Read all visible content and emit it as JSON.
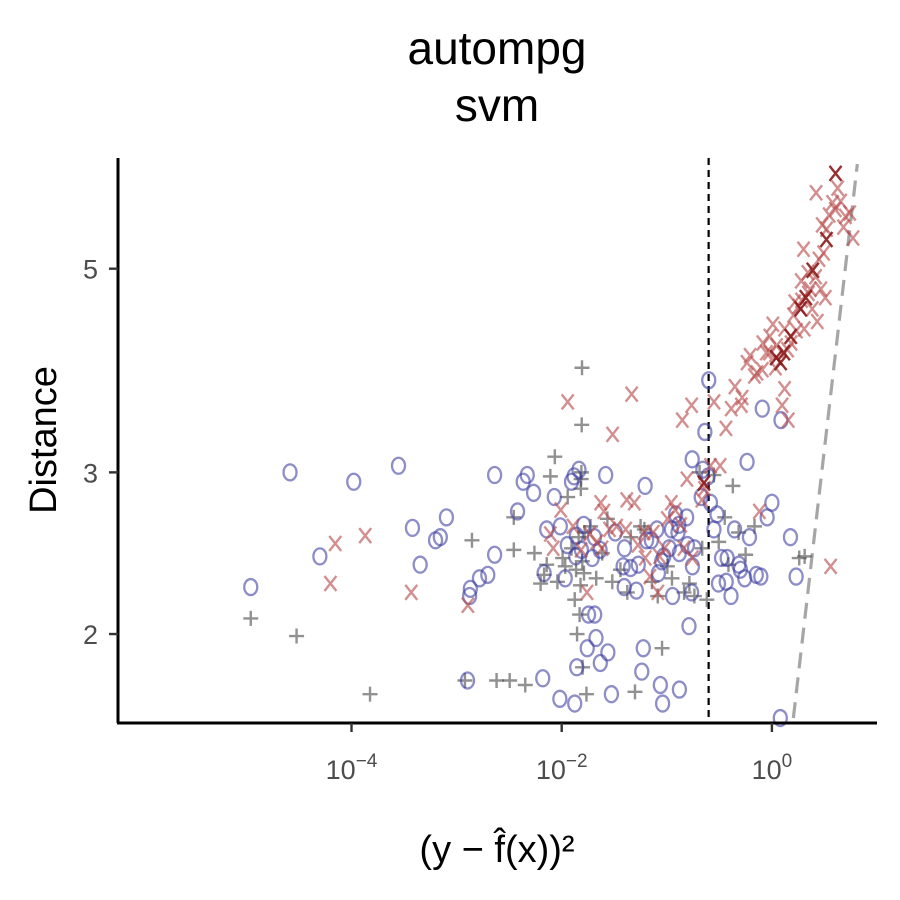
{
  "chart_data": {
    "type": "scatter",
    "title_lines": [
      "autompg",
      "svm"
    ],
    "xlabel": "(y − f̂(x))²",
    "ylabel": "Distance",
    "x_scale": "log10",
    "y_scale": "log",
    "xlim": [
      6e-07,
      10
    ],
    "ylim": [
      1.6,
      6.6
    ],
    "x_ticks": [
      {
        "value": 0.0001,
        "base": "10",
        "exp": "−4"
      },
      {
        "value": 0.01,
        "base": "10",
        "exp": "−2"
      },
      {
        "value": 1,
        "base": "10",
        "exp": "0"
      }
    ],
    "y_ticks": [
      {
        "value": 2,
        "label": "2"
      },
      {
        "value": 3,
        "label": "3"
      },
      {
        "value": 5,
        "label": "5"
      }
    ],
    "vline": {
      "x": 0.25,
      "style": "dashed",
      "color": "#000000"
    },
    "reference_line": {
      "points": [
        [
          1.6,
          1.62
        ],
        [
          6.5,
          6.5
        ]
      ],
      "style": "dashed",
      "color": "#a6a6a6"
    },
    "grid": false,
    "legend": "none",
    "colors": {
      "plus": "#4d4d4d",
      "o": "#3b3ba0",
      "x": "#b84a4a",
      "x_dark": "#8b1a1a"
    },
    "series": [
      {
        "marker": "+",
        "points": [
          [
            1.1e-05,
            2.08
          ],
          [
            3e-05,
            1.99
          ],
          [
            0.00015,
            1.72
          ],
          [
            0.0032,
            1.78
          ],
          [
            0.0045,
            1.76
          ],
          [
            0.0014,
            2.53
          ],
          [
            0.0035,
            2.47
          ],
          [
            0.0012,
            1.78
          ],
          [
            0.0024,
            1.78
          ],
          [
            0.0035,
            2.68
          ],
          [
            0.0055,
            2.45
          ],
          [
            0.0063,
            2.27
          ],
          [
            0.0068,
            2.32
          ],
          [
            0.0072,
            2.38
          ],
          [
            0.0078,
            2.97
          ],
          [
            0.0086,
            3.12
          ],
          [
            0.0091,
            2.28
          ],
          [
            0.0102,
            2.42
          ],
          [
            0.0108,
            2.37
          ],
          [
            0.0114,
            2.82
          ],
          [
            0.0124,
            2.48
          ],
          [
            0.0133,
            2.18
          ],
          [
            0.0137,
            2.35
          ],
          [
            0.014,
            2.0
          ],
          [
            0.0145,
            2.55
          ],
          [
            0.0148,
            2.1
          ],
          [
            0.0151,
            2.26
          ],
          [
            0.0152,
            2.88
          ],
          [
            0.0153,
            2.95
          ],
          [
            0.0154,
            3.0
          ],
          [
            0.0155,
            3.38
          ],
          [
            0.0156,
            3.9
          ],
          [
            0.0157,
            2.4
          ],
          [
            0.0158,
            1.84
          ],
          [
            0.0163,
            2.33
          ],
          [
            0.0165,
            2.58
          ],
          [
            0.0172,
            1.72
          ],
          [
            0.0188,
            2.62
          ],
          [
            0.0213,
            2.3
          ],
          [
            0.0243,
            2.45
          ],
          [
            0.0272,
            2.67
          ],
          [
            0.0303,
            2.28
          ],
          [
            0.0362,
            2.35
          ],
          [
            0.0421,
            2.22
          ],
          [
            0.0454,
            2.55
          ],
          [
            0.0563,
            2.62
          ],
          [
            0.0721,
            2.28
          ],
          [
            0.082,
            2.2
          ],
          [
            0.0901,
            1.93
          ],
          [
            0.1012,
            2.37
          ],
          [
            0.112,
            2.3
          ],
          [
            0.146,
            2.22
          ],
          [
            0.164,
            2.27
          ],
          [
            0.183,
            2.2
          ],
          [
            0.205,
            3.0
          ],
          [
            0.2172,
            2.48
          ],
          [
            0.2402,
            2.18
          ],
          [
            0.2802,
            2.98
          ],
          [
            0.312,
            2.52
          ],
          [
            0.356,
            2.68
          ],
          [
            0.386,
            2.38
          ],
          [
            0.425,
            2.9
          ],
          [
            0.482,
            2.58
          ],
          [
            0.562,
            2.44
          ],
          [
            0.683,
            2.62
          ],
          [
            0.0498,
            1.73
          ],
          [
            0.0612,
            2.6
          ],
          [
            1.82,
            2.42
          ],
          [
            2.05,
            2.43
          ]
        ]
      },
      {
        "marker": "o",
        "points": [
          [
            1.1e-05,
            2.25
          ],
          [
            2.6e-05,
            3.0
          ],
          [
            5e-05,
            2.43
          ],
          [
            0.000105,
            2.93
          ],
          [
            0.00028,
            3.05
          ],
          [
            0.00038,
            2.61
          ],
          [
            0.00045,
            2.38
          ],
          [
            0.0007,
            2.55
          ],
          [
            0.00063,
            2.53
          ],
          [
            0.0008,
            2.68
          ],
          [
            0.00127,
            1.78
          ],
          [
            0.00133,
            2.2
          ],
          [
            0.00135,
            2.24
          ],
          [
            0.00165,
            2.3
          ],
          [
            0.00198,
            2.32
          ],
          [
            0.0023,
            2.44
          ],
          [
            0.0023,
            2.98
          ],
          [
            0.0038,
            2.72
          ],
          [
            0.0043,
            2.93
          ],
          [
            0.0047,
            2.98
          ],
          [
            0.0054,
            2.85
          ],
          [
            0.0066,
            1.79
          ],
          [
            0.0068,
            2.33
          ],
          [
            0.0072,
            2.6
          ],
          [
            0.0085,
            2.82
          ],
          [
            0.0096,
            1.7
          ],
          [
            0.0097,
            2.62
          ],
          [
            0.0108,
            2.3
          ],
          [
            0.0113,
            2.5
          ],
          [
            0.0124,
            2.93
          ],
          [
            0.0131,
            2.97
          ],
          [
            0.0133,
            1.68
          ],
          [
            0.0136,
            2.43
          ],
          [
            0.0138,
            2.56
          ],
          [
            0.0139,
            1.84
          ],
          [
            0.0146,
            3.02
          ],
          [
            0.0154,
            2.47
          ],
          [
            0.0162,
            2.63
          ],
          [
            0.0175,
            1.93
          ],
          [
            0.018,
            2.1
          ],
          [
            0.0195,
            2.42
          ],
          [
            0.0205,
            2.55
          ],
          [
            0.0206,
            2.1
          ],
          [
            0.0212,
            1.98
          ],
          [
            0.0233,
            1.86
          ],
          [
            0.0232,
            2.47
          ],
          [
            0.0262,
            2.98
          ],
          [
            0.0275,
            1.91
          ],
          [
            0.0297,
            1.72
          ],
          [
            0.0323,
            2.58
          ],
          [
            0.0384,
            2.37
          ],
          [
            0.0393,
            2.25
          ],
          [
            0.0396,
            2.48
          ],
          [
            0.0452,
            2.36
          ],
          [
            0.0513,
            2.23
          ],
          [
            0.0535,
            2.38
          ],
          [
            0.0578,
            1.82
          ],
          [
            0.0597,
            1.93
          ],
          [
            0.0622,
            2.9
          ],
          [
            0.0642,
            2.53
          ],
          [
            0.0713,
            2.53
          ],
          [
            0.0805,
            2.6
          ],
          [
            0.0832,
            2.33
          ],
          [
            0.0868,
            1.76
          ],
          [
            0.0894,
            2.4
          ],
          [
            0.0936,
            2.43
          ],
          [
            0.1054,
            2.48
          ],
          [
            0.1105,
            2.6
          ],
          [
            0.1135,
            2.2
          ],
          [
            0.1213,
            2.7
          ],
          [
            0.1277,
            2.58
          ],
          [
            0.1303,
            2.63
          ],
          [
            0.1315,
            2.45
          ],
          [
            0.1318,
            1.74
          ],
          [
            0.1545,
            2.68
          ],
          [
            0.1572,
            2.5
          ],
          [
            0.1626,
            2.04
          ],
          [
            0.1722,
            2.22
          ],
          [
            0.1744,
            3.1
          ],
          [
            0.1753,
            2.37
          ],
          [
            0.1835,
            2.48
          ],
          [
            0.2125,
            2.82
          ],
          [
            0.2203,
            3.02
          ],
          [
            0.2302,
            3.32
          ],
          [
            0.2472,
            2.97
          ],
          [
            0.2506,
            3.78
          ],
          [
            0.2602,
            2.78
          ],
          [
            0.2807,
            2.6
          ],
          [
            0.3003,
            2.7
          ],
          [
            0.3102,
            2.27
          ],
          [
            0.3318,
            2.42
          ],
          [
            0.3675,
            2.28
          ],
          [
            0.4081,
            2.2
          ],
          [
            0.4412,
            2.6
          ],
          [
            0.4852,
            2.38
          ],
          [
            0.5013,
            2.35
          ],
          [
            0.5512,
            2.3
          ],
          [
            0.5803,
            3.08
          ],
          [
            0.6113,
            2.55
          ],
          [
            0.7102,
            2.32
          ],
          [
            0.785,
            2.31
          ],
          [
            0.8102,
            3.52
          ],
          [
            0.9006,
            2.68
          ],
          [
            1.0002,
            2.78
          ],
          [
            1.2205,
            3.42
          ],
          [
            1.5013,
            2.55
          ],
          [
            1.7003,
            2.31
          ],
          [
            1.2016,
            1.62
          ],
          [
            0.3752,
            2.42
          ],
          [
            0.0912,
            1.68
          ]
        ]
      },
      {
        "marker": "x",
        "points": [
          [
            6.3e-05,
            2.27
          ],
          [
            7e-05,
            2.51
          ],
          [
            0.000135,
            2.56
          ],
          [
            0.00037,
            2.22
          ],
          [
            0.00128,
            2.15
          ],
          [
            0.0078,
            2.57
          ],
          [
            0.0083,
            2.48
          ],
          [
            0.0098,
            2.73
          ],
          [
            0.0114,
            3.58
          ],
          [
            0.0128,
            2.62
          ],
          [
            0.0153,
            2.47
          ],
          [
            0.0174,
            2.22
          ],
          [
            0.0184,
            2.57
          ],
          [
            0.0216,
            2.52
          ],
          [
            0.0235,
            2.78
          ],
          [
            0.0242,
            2.48
          ],
          [
            0.0252,
            2.72
          ],
          [
            0.0285,
            2.6
          ],
          [
            0.0305,
            3.3
          ],
          [
            0.0333,
            2.62
          ],
          [
            0.0406,
            2.6
          ],
          [
            0.0416,
            2.8
          ],
          [
            0.0463,
            3.65
          ],
          [
            0.0491,
            2.78
          ],
          [
            0.0532,
            2.5
          ],
          [
            0.0607,
            2.58
          ],
          [
            0.0623,
            2.42
          ],
          [
            0.0692,
            2.31
          ],
          [
            0.0743,
            2.58
          ],
          [
            0.0822,
            2.22
          ],
          [
            0.0856,
            2.43
          ],
          [
            0.0952,
            2.48
          ],
          [
            0.1013,
            2.67
          ],
          [
            0.1103,
            2.78
          ],
          [
            0.1202,
            2.73
          ],
          [
            0.1356,
            2.63
          ],
          [
            0.1453,
            2.48
          ],
          [
            0.1405,
            3.42
          ],
          [
            0.1555,
            2.95
          ],
          [
            0.1722,
            3.55
          ],
          [
            0.1751,
            2.42
          ],
          [
            0.2155,
            2.8
          ],
          [
            0.2282,
            2.88
          ],
          [
            0.2603,
            3.05
          ],
          [
            0.2814,
            3.58
          ],
          [
            0.3213,
            3.05
          ],
          [
            0.3651,
            3.35
          ],
          [
            0.4102,
            3.52
          ],
          [
            0.4451,
            3.72
          ],
          [
            0.5124,
            3.55
          ],
          [
            0.5206,
            3.62
          ],
          [
            0.5803,
            3.95
          ],
          [
            0.6205,
            4.02
          ],
          [
            0.6812,
            3.82
          ],
          [
            0.7211,
            3.85
          ],
          [
            0.8103,
            3.88
          ],
          [
            0.8205,
            4.15
          ],
          [
            0.8851,
            4.05
          ],
          [
            0.9552,
            4.22
          ],
          [
            1.0206,
            4.35
          ],
          [
            1.1052,
            4.12
          ],
          [
            1.2503,
            3.55
          ],
          [
            1.3201,
            4.3
          ],
          [
            1.4103,
            4.08
          ],
          [
            1.5212,
            4.15
          ],
          [
            1.6051,
            4.45
          ],
          [
            1.7102,
            4.28
          ],
          [
            1.8035,
            4.55
          ],
          [
            1.9156,
            4.62
          ],
          [
            2.0302,
            4.3
          ],
          [
            2.2201,
            4.7
          ],
          [
            2.4201,
            4.52
          ],
          [
            2.6052,
            4.9
          ],
          [
            2.7013,
            4.38
          ],
          [
            2.8051,
            5.12
          ],
          [
            2.9209,
            4.75
          ],
          [
            3.1021,
            5.2
          ],
          [
            3.3102,
            5.52
          ],
          [
            3.5023,
            5.72
          ],
          [
            3.6202,
            2.37
          ],
          [
            3.7802,
            5.9
          ],
          [
            4.0103,
            5.8
          ],
          [
            4.2201,
            6.12
          ],
          [
            4.5102,
            5.92
          ],
          [
            5.0103,
            5.7
          ],
          [
            5.5013,
            5.75
          ],
          [
            1.9012,
            4.85
          ],
          [
            2.3102,
            4.75
          ],
          [
            1.3202,
            3.7
          ],
          [
            0.9502,
            4.05
          ],
          [
            2.6308,
            6.05
          ],
          [
            3.0105,
            5.58
          ],
          [
            4.8001,
            5.55
          ],
          [
            2.2001,
            4.95
          ],
          [
            1.0803,
            3.9
          ],
          [
            1.4307,
            3.42
          ],
          [
            2.0001,
            5.25
          ],
          [
            0.7601,
            2.72
          ],
          [
            1.6502,
            4.6
          ],
          [
            5.9101,
            5.4
          ],
          [
            3.2201,
            4.65
          ]
        ]
      },
      {
        "marker": "x_dark",
        "points": [
          [
            0.2253,
            2.92
          ],
          [
            1.1002,
            4.0
          ],
          [
            1.3005,
            4.05
          ],
          [
            1.5103,
            4.22
          ],
          [
            1.8802,
            4.52
          ],
          [
            2.1008,
            4.65
          ],
          [
            2.4503,
            4.98
          ],
          [
            3.3018,
            5.38
          ],
          [
            4.0306,
            6.35
          ],
          [
            1.2102,
            3.95
          ]
        ]
      }
    ]
  }
}
